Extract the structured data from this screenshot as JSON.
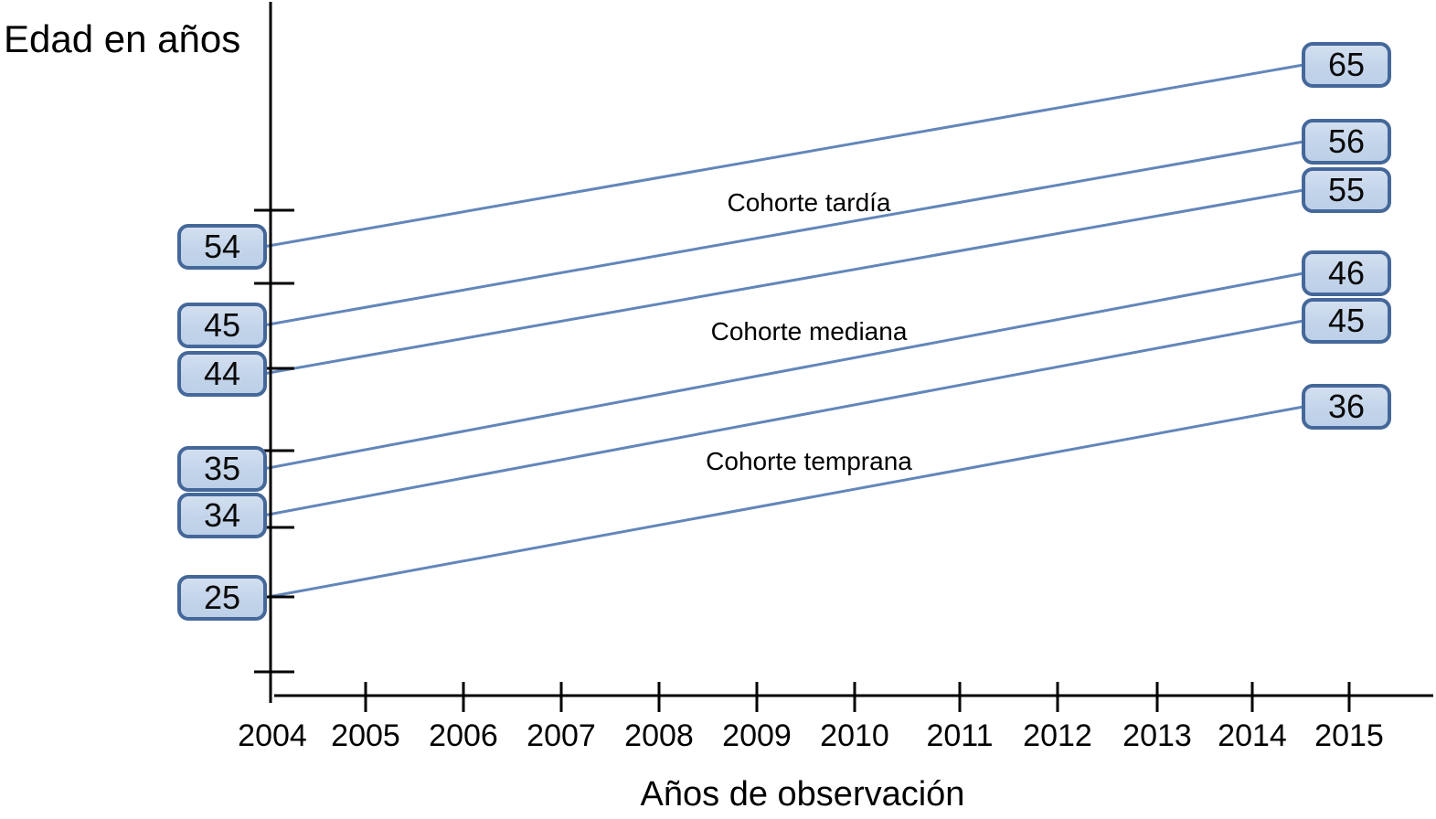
{
  "chart_data": {
    "type": "line",
    "title": "",
    "xlabel": "Años de observación",
    "ylabel": "Edad en años",
    "x_range": [
      2004,
      2015
    ],
    "grid": false,
    "legend_position": "none",
    "x_tick_labels": [
      "2004",
      "2005",
      "2006",
      "2007",
      "2008",
      "2009",
      "2010",
      "2011",
      "2012",
      "2013",
      "2014",
      "2015"
    ],
    "cohort_labels": [
      "Cohorte tardía",
      "Cohorte mediana",
      "Cohorte temprana"
    ],
    "cohorts": [
      {
        "label": "Cohorte tardía",
        "ages_2004": [
          45,
          54
        ],
        "ages_2015": [
          56,
          65
        ]
      },
      {
        "label": "Cohorte mediana",
        "ages_2004": [
          35,
          44
        ],
        "ages_2015": [
          46,
          55
        ]
      },
      {
        "label": "Cohorte temprana",
        "ages_2004": [
          25,
          34
        ],
        "ages_2015": [
          36,
          45
        ]
      }
    ],
    "trajectories": [
      {
        "cohort": "Cohorte tardía",
        "start_year": 2004,
        "start_age": 54,
        "end_year": 2015,
        "end_age": 65
      },
      {
        "cohort": "Cohorte tardía",
        "start_year": 2004,
        "start_age": 45,
        "end_year": 2015,
        "end_age": 56
      },
      {
        "cohort": "Cohorte mediana",
        "start_year": 2004,
        "start_age": 44,
        "end_year": 2015,
        "end_age": 55
      },
      {
        "cohort": "Cohorte mediana",
        "start_year": 2004,
        "start_age": 35,
        "end_year": 2015,
        "end_age": 46
      },
      {
        "cohort": "Cohorte temprana",
        "start_year": 2004,
        "start_age": 34,
        "end_year": 2015,
        "end_age": 45
      },
      {
        "cohort": "Cohorte temprana",
        "start_year": 2004,
        "start_age": 25,
        "end_year": 2015,
        "end_age": 36
      }
    ],
    "colors": {
      "box_fill": "#c3d4ea",
      "box_border": "#45689a",
      "trajectory_line": "#6286ba",
      "axis": "#000000",
      "text": "#000000"
    }
  }
}
